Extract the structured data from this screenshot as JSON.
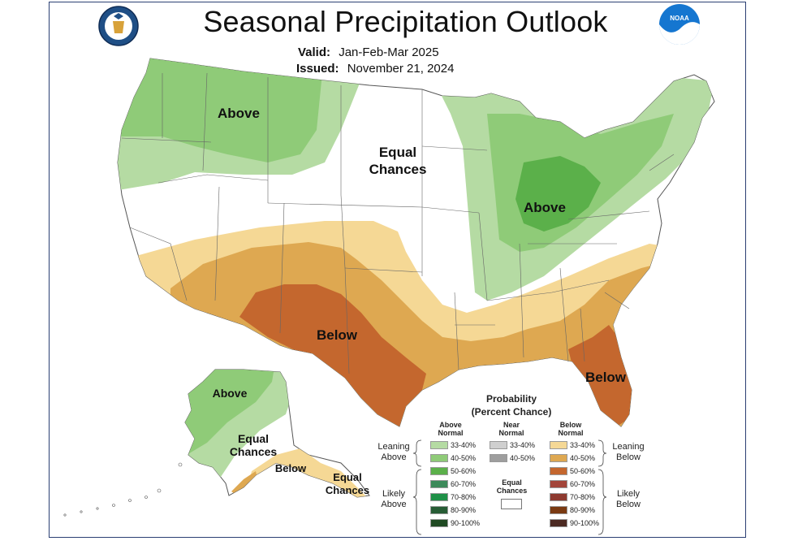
{
  "title": "Seasonal Precipitation Outlook",
  "valid_label": "Valid:",
  "valid_value": "Jan-Feb-Mar 2025",
  "issued_label": "Issued:",
  "issued_value": "November 21, 2024",
  "logos": {
    "left": "department-of-commerce-seal",
    "right": "noaa-logo",
    "noaa_text": "NOAA"
  },
  "labels": {
    "nw_above": "Above",
    "equal_chances_1": "Equal",
    "equal_chances_2": "Chances",
    "great_lakes_above": "Above",
    "south_below": "Below",
    "florida_below": "Below",
    "alaska_above": "Above",
    "alaska_equal_1": "Equal",
    "alaska_equal_2": "Chances",
    "alaska_below": "Below",
    "aleutian_equal_1": "Equal",
    "aleutian_equal_2": "Chances"
  },
  "legend": {
    "title_1": "Probability",
    "title_2": "(Percent Chance)",
    "above_header_1": "Above",
    "above_header_2": "Normal",
    "near_header_1": "Near",
    "near_header_2": "Normal",
    "below_header_1": "Below",
    "below_header_2": "Normal",
    "leaning_above_1": "Leaning",
    "leaning_above_2": "Above",
    "likely_above_1": "Likely",
    "likely_above_2": "Above",
    "leaning_below_1": "Leaning",
    "leaning_below_2": "Below",
    "likely_below_1": "Likely",
    "likely_below_2": "Below",
    "equal_chances_1": "Equal",
    "equal_chances_2": "Chances",
    "above": [
      {
        "label": "33-40%",
        "color": "#b5dba3"
      },
      {
        "label": "40-50%",
        "color": "#8fcb78"
      },
      {
        "label": "50-60%",
        "color": "#5bb04a"
      },
      {
        "label": "60-70%",
        "color": "#3d8a5a"
      },
      {
        "label": "70-80%",
        "color": "#1f9148"
      },
      {
        "label": "80-90%",
        "color": "#275c35"
      },
      {
        "label": "90-100%",
        "color": "#1f4a22"
      }
    ],
    "near": [
      {
        "label": "33-40%",
        "color": "#cfcfcf"
      },
      {
        "label": "40-50%",
        "color": "#9e9e9e"
      }
    ],
    "below": [
      {
        "label": "33-40%",
        "color": "#f5d895"
      },
      {
        "label": "40-50%",
        "color": "#dea851"
      },
      {
        "label": "50-60%",
        "color": "#c4672e"
      },
      {
        "label": "60-70%",
        "color": "#a3453a"
      },
      {
        "label": "70-80%",
        "color": "#8e3a30"
      },
      {
        "label": "80-90%",
        "color": "#7a3a12"
      },
      {
        "label": "90-100%",
        "color": "#4c2a22"
      }
    ]
  }
}
